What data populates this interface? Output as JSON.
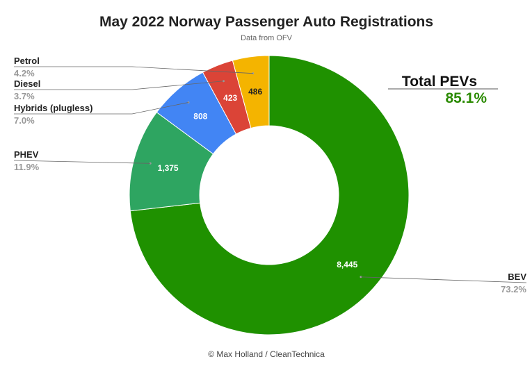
{
  "chart_data": {
    "type": "pie",
    "variant": "donut",
    "title": "May 2022 Norway Passenger Auto Registrations",
    "subtitle": "Data from OFV",
    "footer": "© Max Holland / CleanTechnica",
    "slices": [
      {
        "name": "BEV",
        "value": 8445,
        "value_label": "8,445",
        "percent_label": "73.2%",
        "color": "#1f9100",
        "label_color": "#ffffff"
      },
      {
        "name": "PHEV",
        "value": 1375,
        "value_label": "1,375",
        "percent_label": "11.9%",
        "color": "#2ea561",
        "label_color": "#ffffff"
      },
      {
        "name": "Hybrids (plugless)",
        "value": 808,
        "value_label": "808",
        "percent_label": "7.0%",
        "color": "#4285f4",
        "label_color": "#ffffff"
      },
      {
        "name": "Diesel",
        "value": 423,
        "value_label": "423",
        "percent_label": "3.7%",
        "color": "#db4437",
        "label_color": "#ffffff"
      },
      {
        "name": "Petrol",
        "value": 486,
        "value_label": "486",
        "percent_label": "4.2%",
        "color": "#f4b400",
        "label_color": "#222222"
      }
    ],
    "annotation": {
      "label": "Total PEVs",
      "value": "85.1%",
      "value_color": "#2a8a00"
    }
  }
}
